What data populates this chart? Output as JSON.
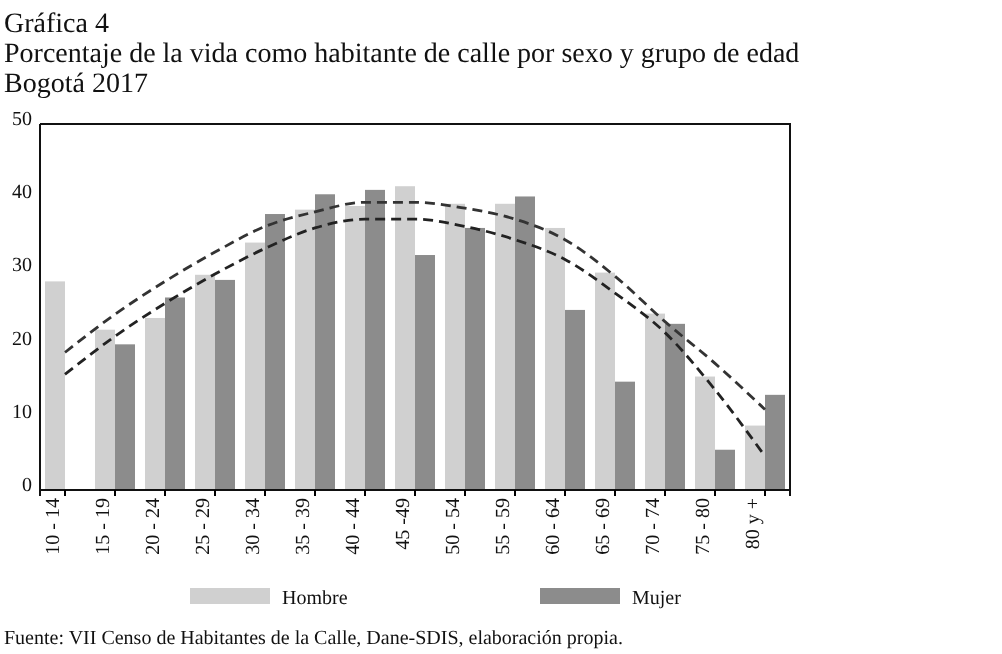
{
  "chart_data": {
    "type": "bar",
    "title": "Gráfica 4",
    "subtitle": "Porcentaje de la vida como habitante de calle por sexo y grupo de edad\nBogotá 2017",
    "categories": [
      "10 - 14",
      "15 - 19",
      "20 - 24",
      "25 - 29",
      "30 - 34",
      "35 - 39",
      "40 - 44",
      "45 -49",
      "50 - 54",
      "55 - 59",
      "60 - 64",
      "65 - 69",
      "70 - 74",
      "75 - 80",
      "80 y +"
    ],
    "series": [
      {
        "name": "Hombre",
        "color": "#d0d0d0",
        "values": [
          28.5,
          21.9,
          23.5,
          29.4,
          33.8,
          38.3,
          38.8,
          41.5,
          39.1,
          39.1,
          35.8,
          29.7,
          24.1,
          15.5,
          8.8
        ]
      },
      {
        "name": "Mujer",
        "color": "#8c8c8c",
        "values": [
          null,
          19.9,
          26.3,
          28.7,
          37.7,
          40.4,
          41,
          32.1,
          35.8,
          40.1,
          24.6,
          14.8,
          22.7,
          5.5,
          13
        ]
      },
      {
        "type": "line",
        "color": "#333333",
        "line_style": "dashed",
        "values": [
          18.8,
          24,
          28.5,
          32.5,
          36,
          38,
          39.3,
          39.3,
          38.5,
          37,
          34.2,
          29.2,
          23,
          17.3,
          11
        ]
      },
      {
        "type": "line",
        "color": "#222222",
        "line_style": "dashed",
        "values": [
          15.8,
          21,
          25.5,
          29.5,
          33,
          35.8,
          37,
          37,
          36,
          34.2,
          31.5,
          26.9,
          21.5,
          13.7,
          4.6
        ]
      }
    ],
    "ylim": [
      0,
      50
    ],
    "yticks": [
      0,
      10,
      20,
      30,
      40,
      50
    ],
    "grid": false,
    "legend": "bottom",
    "annotations": [
      "Fuente: VII Censo de Habitantes de la Calle, Dane-SDIS, elaboración propia."
    ]
  }
}
